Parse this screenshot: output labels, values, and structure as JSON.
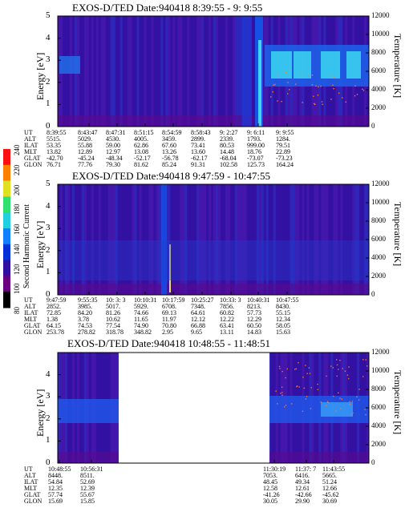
{
  "chart_data": {
    "type": "heatmap",
    "colorbar": {
      "label": "Second Harmonic Current",
      "ticks": [
        "80",
        "100",
        "120",
        "140",
        "160",
        "180",
        "200",
        "220",
        "240"
      ],
      "colors": [
        "#000000",
        "#6a0080",
        "#3010a0",
        "#0030d8",
        "#1080ff",
        "#20d0e0",
        "#30e070",
        "#e0e020",
        "#ff8000",
        "#ff1010"
      ]
    },
    "panels": [
      {
        "title": "EXOS-D/TED   Date:940418   8:39:55 - 9: 9:55",
        "ylabel": "Energy [eV]",
        "y2label": "Temperature [K]",
        "ylim": [
          0,
          5
        ],
        "yticks": [
          "0",
          "1",
          "2",
          "3",
          "4",
          "5"
        ],
        "y2lim": [
          0,
          12000
        ],
        "y2ticks": [
          "0",
          "2000",
          "4000",
          "6000",
          "8000",
          "10000",
          "12000"
        ],
        "row_labels": [
          "UT",
          "ALT",
          "ILAT",
          "MLT",
          "GLAT",
          "GLON"
        ],
        "columns": [
          [
            "8:39:55",
            "5515.",
            "53.35",
            "13.82",
            "-42.70",
            "76.71"
          ],
          [
            "8:43:47",
            "5029.",
            "55.88",
            "12.89",
            "-45.24",
            "77.76"
          ],
          [
            "8:47:31",
            "4530.",
            "59.00",
            "12.97",
            "-48.34",
            "79.30"
          ],
          [
            "8:51:15",
            "4005.",
            "62.86",
            "13.08",
            "-52.17",
            "81.62"
          ],
          [
            "8:54:59",
            "3459.",
            "67.60",
            "13.26",
            "-56.78",
            "85.24"
          ],
          [
            "8:58:43",
            "2899.",
            "73.41",
            "13.60",
            "-62.17",
            "91.31"
          ],
          [
            "9: 2:27",
            "2339.",
            "80.53",
            "14.48",
            "-68.04",
            "102.58"
          ],
          [
            "9: 6:11",
            "1793.",
            "999.00",
            "18.76",
            "-73.07",
            "125.73"
          ],
          [
            "9: 9:55",
            "1284.",
            "79.51",
            "22.89",
            "-73.23",
            "164.24"
          ]
        ]
      },
      {
        "title": "EXOS-D/TED   Date:940418   9:47:59 - 10:47:55",
        "ylabel": "Energy [eV]",
        "y2label": "Temperature [K]",
        "ylim": [
          0,
          5
        ],
        "yticks": [
          "0",
          "1",
          "2",
          "3",
          "4",
          "5"
        ],
        "y2lim": [
          0,
          12000
        ],
        "y2ticks": [
          "0",
          "2000",
          "4000",
          "6000",
          "8000",
          "10000",
          "12000"
        ],
        "row_labels": [
          "UT",
          "ALT",
          "ILAT",
          "MLT",
          "GLAT",
          "GLON"
        ],
        "columns": [
          [
            "9:47:59",
            "2852.",
            "72.85",
            "1.38",
            "64.15",
            "253.78"
          ],
          [
            "9:55:35",
            "3985.",
            "84.20",
            "3.78",
            "74.53",
            "278.82"
          ],
          [
            "10: 3: 3",
            "5017.",
            "81.26",
            "10.62",
            "77.54",
            "318.78"
          ],
          [
            "10:10:31",
            "5929.",
            "74.66",
            "11.65",
            "74.90",
            "348.82"
          ],
          [
            "10:17:59",
            "6708.",
            "69.13",
            "11.97",
            "70.80",
            "2.95"
          ],
          [
            "10:25:27",
            "7348.",
            "64.61",
            "12.12",
            "66.88",
            "9.65"
          ],
          [
            "10:33: 3",
            "7856.",
            "60.82",
            "12.22",
            "63.41",
            "13.11"
          ],
          [
            "10:40:31",
            "8213.",
            "57.73",
            "12.29",
            "60.50",
            "14.83"
          ],
          [
            "10:47:55",
            "8430.",
            "55.15",
            "12.34",
            "58.05",
            "15.63"
          ]
        ]
      },
      {
        "title": "EXOS-D/TED   Date:940418   10:48:55 - 11:48:51",
        "ylabel": "Energy [eV]",
        "y2label": "Temperature [K]",
        "ylim": [
          0,
          5
        ],
        "yticks": [
          "0",
          "1",
          "2",
          "3",
          "4"
        ],
        "y2lim": [
          0,
          12000
        ],
        "y2ticks": [
          "0",
          "2000",
          "4000",
          "6000",
          "8000",
          "10000",
          "12000"
        ],
        "row_labels": [
          "UT",
          "ALT",
          "ILAT",
          "MLT",
          "GLAT",
          "GLON"
        ],
        "columns": [
          [
            "10:48:55",
            "8448.",
            "54.84",
            "12.35",
            "57.74",
            "15.69"
          ],
          [
            "10:56:31",
            "8511.",
            "52.69",
            "12.39",
            "55.67",
            "15.85"
          ],
          [
            "11:30:19",
            "7053.",
            "48.45",
            "12.58",
            "-41.26",
            "30.05"
          ],
          [
            "11:37: 7",
            "6416.",
            "49.34",
            "12.61",
            "-42.66",
            "29.90"
          ],
          [
            "11:43:55",
            "5665.",
            "51.24",
            "12.66",
            "-45.62",
            "30.69"
          ]
        ]
      }
    ]
  }
}
